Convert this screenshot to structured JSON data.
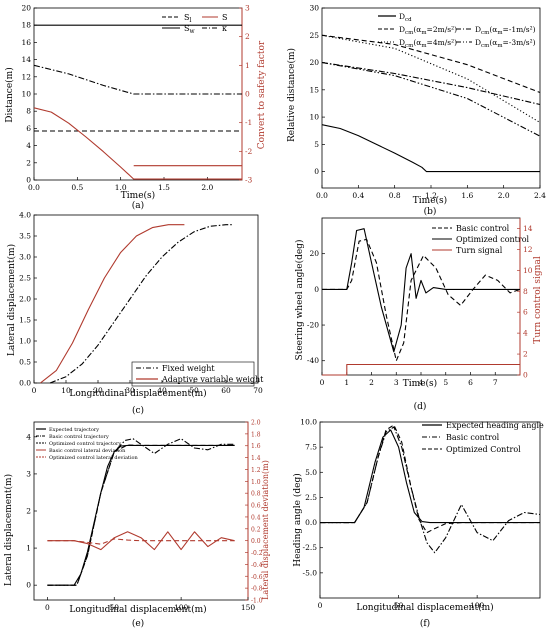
{
  "chart_data": [
    {
      "type": "line",
      "panel_label": "(a)",
      "xlabel": "Time(s)",
      "ylabel": "Distance(m)",
      "y2label": "Convert to safety factor",
      "xlim": [
        0,
        2.4
      ],
      "ylim": [
        0,
        20
      ],
      "y2lim": [
        -3,
        3
      ],
      "xticks": [
        0.0,
        0.5,
        1.0,
        1.5,
        2.0
      ],
      "yticks": [
        0,
        2,
        4,
        6,
        8,
        10,
        12,
        14,
        16,
        18,
        20
      ],
      "y2ticks": [
        -3,
        -2,
        -1,
        0,
        1,
        2,
        3
      ],
      "legend": [
        "S_l",
        "S",
        "S_w",
        "κ"
      ],
      "series": [
        {
          "name": "S_l",
          "axis": "left",
          "color": "#000000",
          "dash": "dash",
          "x": [
            0,
            2.4
          ],
          "y": [
            5.7,
            5.7
          ]
        },
        {
          "name": "S",
          "axis": "left",
          "color": "#b03a2e",
          "dash": "solid",
          "x": [
            0,
            0.2,
            0.4,
            0.6,
            0.8,
            1.0,
            1.15,
            1.2,
            2.4
          ],
          "y": [
            8.4,
            7.9,
            6.6,
            5.0,
            3.3,
            1.5,
            0.1,
            0.1,
            0.1
          ]
        },
        {
          "name": "S_w",
          "axis": "left",
          "color": "#000000",
          "dash": "solid",
          "x": [
            0,
            2.4
          ],
          "y": [
            18.0,
            18.0
          ]
        },
        {
          "name": "κ",
          "axis": "right",
          "color": "#000000",
          "dash": "dashdot",
          "x": [
            0,
            0.4,
            0.8,
            1.15,
            2.4
          ],
          "y": [
            1.0,
            0.7,
            0.3,
            0.0,
            0.0
          ]
        },
        {
          "name": "",
          "axis": "right",
          "color": "#b03a2e",
          "dash": "solid",
          "x": [
            1.15,
            2.4
          ],
          "y": [
            -2.5,
            -2.5
          ]
        }
      ]
    },
    {
      "type": "line",
      "panel_label": "(b)",
      "xlabel": "Time(s)",
      "ylabel": "Relative distance(m)",
      "xlim": [
        0,
        2.4
      ],
      "ylim": [
        -3,
        30
      ],
      "xticks": [
        0.0,
        0.4,
        0.8,
        1.2,
        1.6,
        2.0,
        2.4
      ],
      "yticks": [
        0,
        5,
        10,
        15,
        20,
        25,
        30
      ],
      "legend_labels": [
        "D_cd",
        "D_cm(α_m=2m/s²)",
        "D_cm(α_m=4m/s²)",
        "D_cm(α_m=-1m/s²)",
        "D_cm(α_m=-3m/s²)"
      ],
      "series": [
        {
          "name": "D_cd",
          "dash": "solid",
          "x": [
            0,
            0.2,
            0.4,
            0.6,
            0.8,
            1.0,
            1.1,
            1.15,
            2.4
          ],
          "y": [
            8.6,
            7.9,
            6.6,
            5.0,
            3.4,
            1.7,
            0.8,
            0,
            0
          ]
        },
        {
          "name": "D_cm(α_m=2m/s²)",
          "dash": "dash",
          "x": [
            0,
            0.8,
            1.6,
            2.4
          ],
          "y": [
            25,
            23.3,
            19.6,
            14.5
          ]
        },
        {
          "name": "D_cm(α_m=4m/s²)",
          "dash": "dot",
          "x": [
            0,
            0.8,
            1.6,
            2.4
          ],
          "y": [
            25,
            22.6,
            17.0,
            9.0
          ]
        },
        {
          "name": "D_cm(α_m=-1m/s²)",
          "dash": "dashdot",
          "x": [
            0,
            0.8,
            1.6,
            2.4
          ],
          "y": [
            20,
            18.0,
            15.4,
            12.3
          ]
        },
        {
          "name": "D_cm(α_m=-3m/s²)",
          "dash": "dashdotdot",
          "x": [
            0,
            0.8,
            1.6,
            2.4
          ],
          "y": [
            20,
            17.6,
            13.4,
            6.5
          ]
        }
      ]
    },
    {
      "type": "line",
      "panel_label": "(c)",
      "xlabel": "Longitudinal displacement(m)",
      "ylabel": "Lateral displacement(m)",
      "xlim": [
        0,
        70
      ],
      "ylim": [
        0,
        4.0
      ],
      "xticks": [
        0,
        10,
        20,
        30,
        40,
        50,
        60,
        70
      ],
      "yticks": [
        0.0,
        0.5,
        1.0,
        1.5,
        2.0,
        2.5,
        3.0,
        3.5,
        4.0
      ],
      "series": [
        {
          "name": "Fixed weight",
          "color": "#000000",
          "dash": "dashdot",
          "x": [
            5,
            10,
            15,
            20,
            25,
            30,
            35,
            40,
            45,
            50,
            55,
            60,
            62
          ],
          "y": [
            0,
            0.15,
            0.45,
            0.9,
            1.45,
            2.0,
            2.55,
            3.0,
            3.35,
            3.6,
            3.73,
            3.77,
            3.77
          ]
        },
        {
          "name": "Adaptive variable weight",
          "color": "#b03a2e",
          "dash": "solid",
          "x": [
            2,
            7,
            12,
            17,
            22,
            27,
            32,
            37,
            42,
            47
          ],
          "y": [
            0,
            0.3,
            0.95,
            1.75,
            2.5,
            3.1,
            3.5,
            3.7,
            3.77,
            3.77
          ]
        }
      ]
    },
    {
      "type": "line",
      "panel_label": "(d)",
      "xlabel": "Time(s)",
      "ylabel": "Steering wheel angle(deg)",
      "y2label": "Turn control signal",
      "xlim": [
        0,
        8
      ],
      "ylim": [
        -48,
        40
      ],
      "y2lim": [
        0,
        15
      ],
      "xticks": [
        0,
        1,
        2,
        3,
        4,
        5,
        6,
        7
      ],
      "yticks": [
        -40,
        -20,
        0,
        20
      ],
      "y2ticks": [
        0,
        2,
        4,
        6,
        8,
        10,
        12,
        14
      ],
      "series": [
        {
          "name": "Basic control",
          "dash": "dash",
          "color": "#000000",
          "axis": "left",
          "x": [
            0,
            1.0,
            1.2,
            1.5,
            1.8,
            2.2,
            2.6,
            3.0,
            3.3,
            3.6,
            4.1,
            4.6,
            5.1,
            5.6,
            6.1,
            6.6,
            7.1,
            7.6,
            8
          ],
          "y": [
            0,
            0,
            5,
            27,
            28,
            15,
            -15,
            -40,
            -30,
            5,
            19,
            12,
            -3,
            -9,
            0,
            8,
            5,
            -2,
            0
          ]
        },
        {
          "name": "Optimized control",
          "dash": "solid",
          "color": "#000000",
          "axis": "left",
          "x": [
            0,
            1.0,
            1.2,
            1.4,
            1.7,
            2.0,
            2.4,
            2.9,
            3.2,
            3.4,
            3.6,
            3.8,
            4.0,
            4.2,
            4.5,
            5.0,
            8
          ],
          "y": [
            0,
            0,
            15,
            33,
            34,
            15,
            -10,
            -35,
            -20,
            12,
            20,
            -5,
            5,
            -2,
            1,
            0,
            0
          ]
        },
        {
          "name": "Turn signal",
          "dash": "solid",
          "color": "#b03a2e",
          "axis": "right",
          "x": [
            0,
            1.0,
            1.0,
            8
          ],
          "y": [
            0,
            0,
            1,
            1
          ]
        }
      ]
    },
    {
      "type": "line",
      "panel_label": "(e)",
      "xlabel": "Longitudinal displacement(m)",
      "ylabel": "Lateral displacement(m)",
      "y2label": "Lateral displacement deviation(m)",
      "xlim": [
        -10,
        150
      ],
      "ylim": [
        -0.4,
        4.4
      ],
      "y2lim": [
        -1.0,
        2.0
      ],
      "xticks": [
        0,
        50,
        100,
        150
      ],
      "yticks": [
        0,
        1,
        2,
        3,
        4
      ],
      "y2ticks": [
        -1.0,
        -0.8,
        -0.6,
        -0.4,
        -0.2,
        0.0,
        0.2,
        0.4,
        0.6,
        0.8,
        1.0,
        1.2,
        1.4,
        1.6,
        1.8,
        2.0
      ],
      "legend_labels": [
        "Expected trajectory",
        "Basic control trajectory",
        "Optimized control trajectory",
        "Basic control lateral deviation",
        "Optimized control lateral deviation"
      ],
      "series": [
        {
          "name": "Expected trajectory",
          "dash": "solid",
          "color": "#000000",
          "axis": "left",
          "x": [
            0,
            20,
            25,
            30,
            35,
            40,
            45,
            50,
            55,
            60,
            140
          ],
          "y": [
            0,
            0,
            0.3,
            0.9,
            1.7,
            2.5,
            3.2,
            3.6,
            3.75,
            3.77,
            3.77
          ]
        },
        {
          "name": "Basic control trajectory",
          "dash": "dashdot",
          "color": "#000000",
          "axis": "left",
          "x": [
            0,
            22,
            30,
            40,
            50,
            58,
            64,
            70,
            80,
            90,
            100,
            110,
            120,
            130,
            140
          ],
          "y": [
            0,
            0,
            0.8,
            2.5,
            3.6,
            3.9,
            3.95,
            3.8,
            3.55,
            3.8,
            3.95,
            3.7,
            3.65,
            3.8,
            3.8
          ]
        },
        {
          "name": "Optimized control trajectory",
          "dash": "dash",
          "color": "#000000",
          "axis": "left",
          "x": [
            0,
            22,
            30,
            40,
            50,
            60,
            70,
            140
          ],
          "y": [
            0,
            0,
            0.8,
            2.5,
            3.6,
            3.78,
            3.77,
            3.77
          ]
        },
        {
          "name": "Basic control lateral deviation",
          "dash": "solid",
          "color": "#b03a2e",
          "axis": "right",
          "x": [
            0,
            20,
            30,
            40,
            50,
            60,
            70,
            80,
            90,
            100,
            110,
            120,
            130,
            140
          ],
          "y": [
            0,
            0,
            -0.05,
            -0.15,
            0.05,
            0.15,
            0.05,
            -0.15,
            0.15,
            -0.15,
            0.15,
            -0.1,
            0.05,
            0
          ]
        },
        {
          "name": "Optimized control lateral deviation",
          "dash": "dash",
          "color": "#b03a2e",
          "axis": "right",
          "x": [
            0,
            20,
            30,
            40,
            50,
            60,
            70,
            140
          ],
          "y": [
            0,
            0,
            -0.03,
            -0.06,
            0.03,
            0.01,
            0,
            0
          ]
        }
      ]
    },
    {
      "type": "line",
      "panel_label": "(f)",
      "xlabel": "Longitudinal displacement(m)",
      "ylabel": "Heading angle (deg)",
      "xlim": [
        0,
        140
      ],
      "ylim": [
        -7.5,
        10
      ],
      "xticks": [
        0,
        50,
        100
      ],
      "yticks": [
        -5.0,
        -2.5,
        0.0,
        2.5,
        5.0,
        7.5,
        10.0
      ],
      "series": [
        {
          "name": "Expected heading angle",
          "dash": "solid",
          "x": [
            0,
            22,
            28,
            35,
            40,
            45,
            50,
            55,
            60,
            65,
            70,
            140
          ],
          "y": [
            0,
            0,
            1.5,
            6.0,
            8.5,
            9.2,
            7.5,
            4.0,
            1.0,
            0.1,
            0,
            0
          ]
        },
        {
          "name": "Basic control",
          "dash": "dashdot",
          "x": [
            0,
            22,
            30,
            37,
            42,
            47,
            52,
            58,
            63,
            68,
            73,
            80,
            90,
            100,
            110,
            120,
            130,
            140
          ],
          "y": [
            0,
            0,
            2.0,
            6.5,
            9.0,
            9.5,
            7.5,
            3.5,
            0.5,
            -2.0,
            -3.0,
            -1.5,
            1.8,
            -1.0,
            -1.8,
            0.2,
            1.0,
            0.8
          ]
        },
        {
          "name": "Optimized Control",
          "dash": "dash",
          "x": [
            0,
            22,
            30,
            37,
            42,
            47,
            52,
            58,
            63,
            68,
            73,
            80,
            90,
            140
          ],
          "y": [
            0,
            0,
            2.0,
            6.5,
            9.2,
            9.7,
            8.0,
            3.5,
            0.3,
            -1.0,
            -0.6,
            -0.1,
            0,
            0
          ]
        }
      ]
    }
  ]
}
